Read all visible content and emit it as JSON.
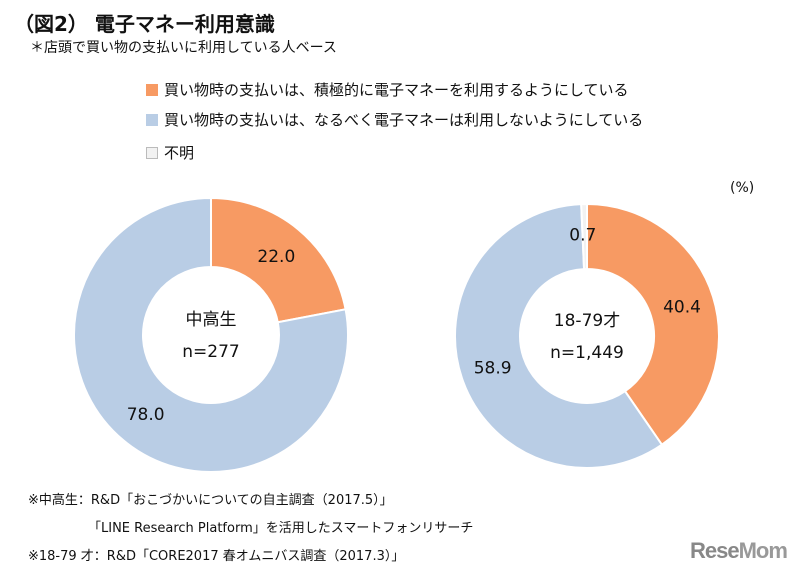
{
  "title": "（図2） 電子マネー利用意識",
  "subtitle": "＊店頭で買い物の支払いに利用している人ベース",
  "unit": "(%)",
  "colors": {
    "active": "#F79A63",
    "not_use": "#B9CDE5",
    "unknown": "#F2F2F2"
  },
  "chart_data": [
    {
      "type": "pie",
      "donut": true,
      "center_label": [
        "中高生",
        "n=277"
      ],
      "categories": [
        "買い物時の支払いは、積極的に電子マネーを利用するようにしている",
        "買い物時の支払いは、なるべく電子マネーは利用しないようにしている"
      ],
      "values": [
        22.0,
        78.0
      ],
      "data_labels": [
        "22.0",
        "78.0"
      ]
    },
    {
      "type": "pie",
      "donut": true,
      "center_label": [
        "18-79才",
        "n=1,449"
      ],
      "categories": [
        "買い物時の支払いは、積極的に電子マネーを利用するようにしている",
        "買い物時の支払いは、なるべく電子マネーは利用しないようにしている",
        "不明"
      ],
      "values": [
        40.4,
        58.9,
        0.7
      ],
      "data_labels": [
        "40.4",
        "58.9",
        "0.7"
      ]
    }
  ],
  "legend": [
    "買い物時の支払いは、積極的に電子マネーを利用するようにしている",
    "買い物時の支払いは、なるべく電子マネーは利用しないようにしている",
    "不明"
  ],
  "notes": [
    "※中高生：R&D「おこづかいについての自主調査（2017.5）」",
    "「LINE Research Platform」を活用したスマートフォンリサーチ",
    "※18-79 才：R&D「CORE2017 春オムニバス調査（2017.3）」"
  ],
  "logo": "ReseMom"
}
